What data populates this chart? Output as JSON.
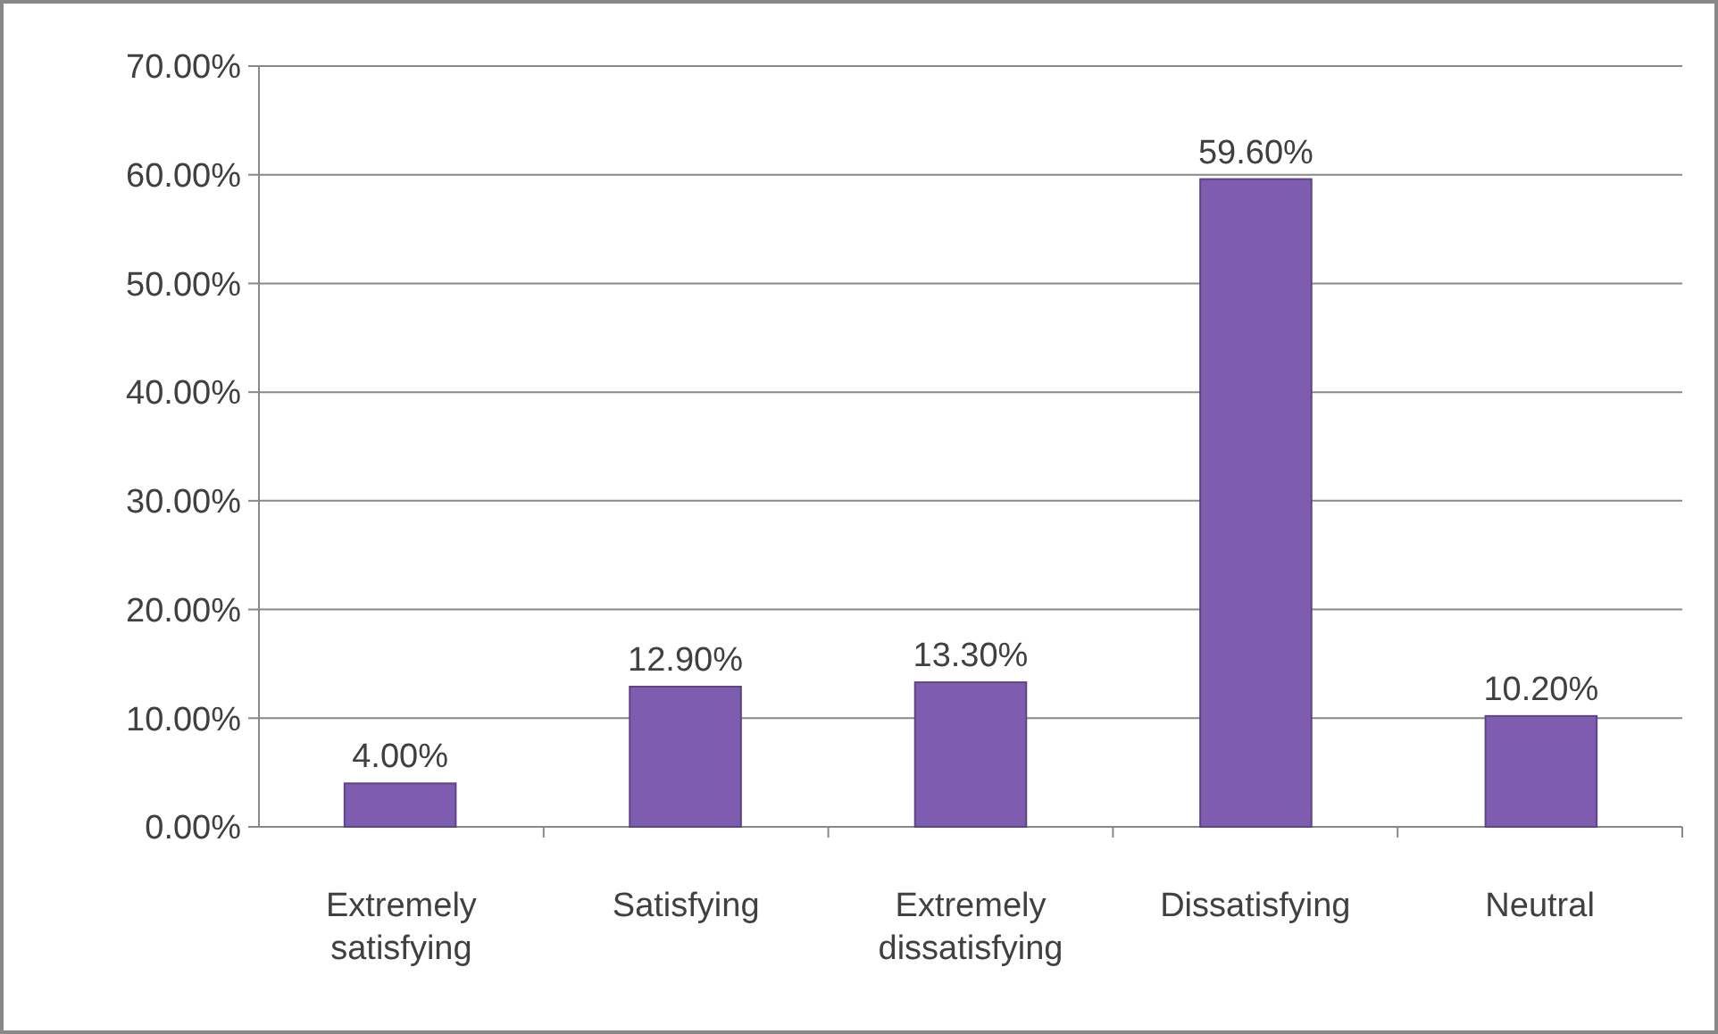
{
  "chart_data": {
    "type": "bar",
    "categories": [
      "Extremely satisfying",
      "Satisfying",
      "Extremely dissatisfying",
      "Dissatisfying",
      "Neutral"
    ],
    "values": [
      4.0,
      12.9,
      13.3,
      59.6,
      10.2
    ],
    "value_labels": [
      "4.00%",
      "12.90%",
      "13.30%",
      "59.60%",
      "10.20%"
    ],
    "color": "#7e5cb0",
    "ylim": [
      0,
      70
    ],
    "yticks": [
      {
        "value": 0,
        "label": "0.00%"
      },
      {
        "value": 10,
        "label": "10.00%"
      },
      {
        "value": 20,
        "label": "20.00%"
      },
      {
        "value": 30,
        "label": "30.00%"
      },
      {
        "value": 40,
        "label": "40.00%"
      },
      {
        "value": 50,
        "label": "50.00%"
      },
      {
        "value": 60,
        "label": "60.00%"
      },
      {
        "value": 70,
        "label": "70.00%"
      }
    ],
    "grid": "y"
  }
}
